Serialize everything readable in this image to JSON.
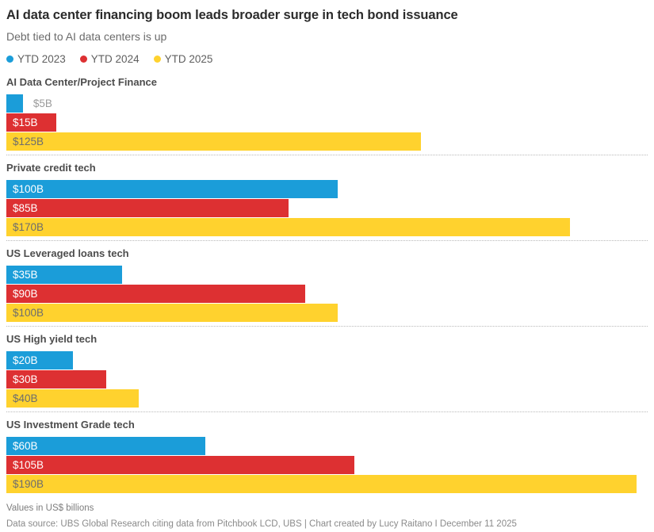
{
  "header": {
    "title": "AI data center financing boom leads broader surge in tech bond issuance",
    "subtitle": "Debt tied to AI data centers is up"
  },
  "legend": {
    "items": [
      {
        "label": "YTD 2023",
        "color": "#1b9dd9"
      },
      {
        "label": "YTD 2024",
        "color": "#dd3032"
      },
      {
        "label": "YTD 2025",
        "color": "#ffd22e"
      }
    ]
  },
  "chart_data": {
    "type": "bar",
    "orientation": "horizontal",
    "title": "AI data center financing boom leads broader surge in tech bond issuance",
    "subtitle": "Debt tied to AI data centers is up",
    "legend_position": "top",
    "grid": false,
    "xmax": 190,
    "units": "US$ billions",
    "categories": [
      "AI Data Center/Project Finance",
      "Private credit tech",
      "US Leveraged loans tech",
      "US High yield tech",
      "US Investment Grade tech"
    ],
    "series": [
      {
        "name": "YTD 2023",
        "color": "#1b9dd9",
        "label_color": "#ffffff",
        "values": [
          5,
          100,
          35,
          20,
          60
        ],
        "labels": [
          "$5B",
          "$100B",
          "$35B",
          "$20B",
          "$60B"
        ]
      },
      {
        "name": "YTD 2024",
        "color": "#dd3032",
        "label_color": "#ffffff",
        "values": [
          15,
          85,
          90,
          30,
          105
        ],
        "labels": [
          "$15B",
          "$85B",
          "$90B",
          "$30B",
          "$105B"
        ]
      },
      {
        "name": "YTD 2025",
        "color": "#ffd22e",
        "label_color": "#6d6d6d",
        "values": [
          125,
          170,
          100,
          40,
          190
        ],
        "labels": [
          "$125B",
          "$170B",
          "$100B",
          "$40B",
          "$190B"
        ]
      }
    ],
    "outside_label_color": "#9b9b9b",
    "outside_label_threshold_pct": 6
  },
  "footer": {
    "note": "Values in US$ billions",
    "source": "Data source: UBS Global Research citing data from Pitchbook LCD, UBS  | Chart created by Lucy Raitano I December 11 2025"
  }
}
